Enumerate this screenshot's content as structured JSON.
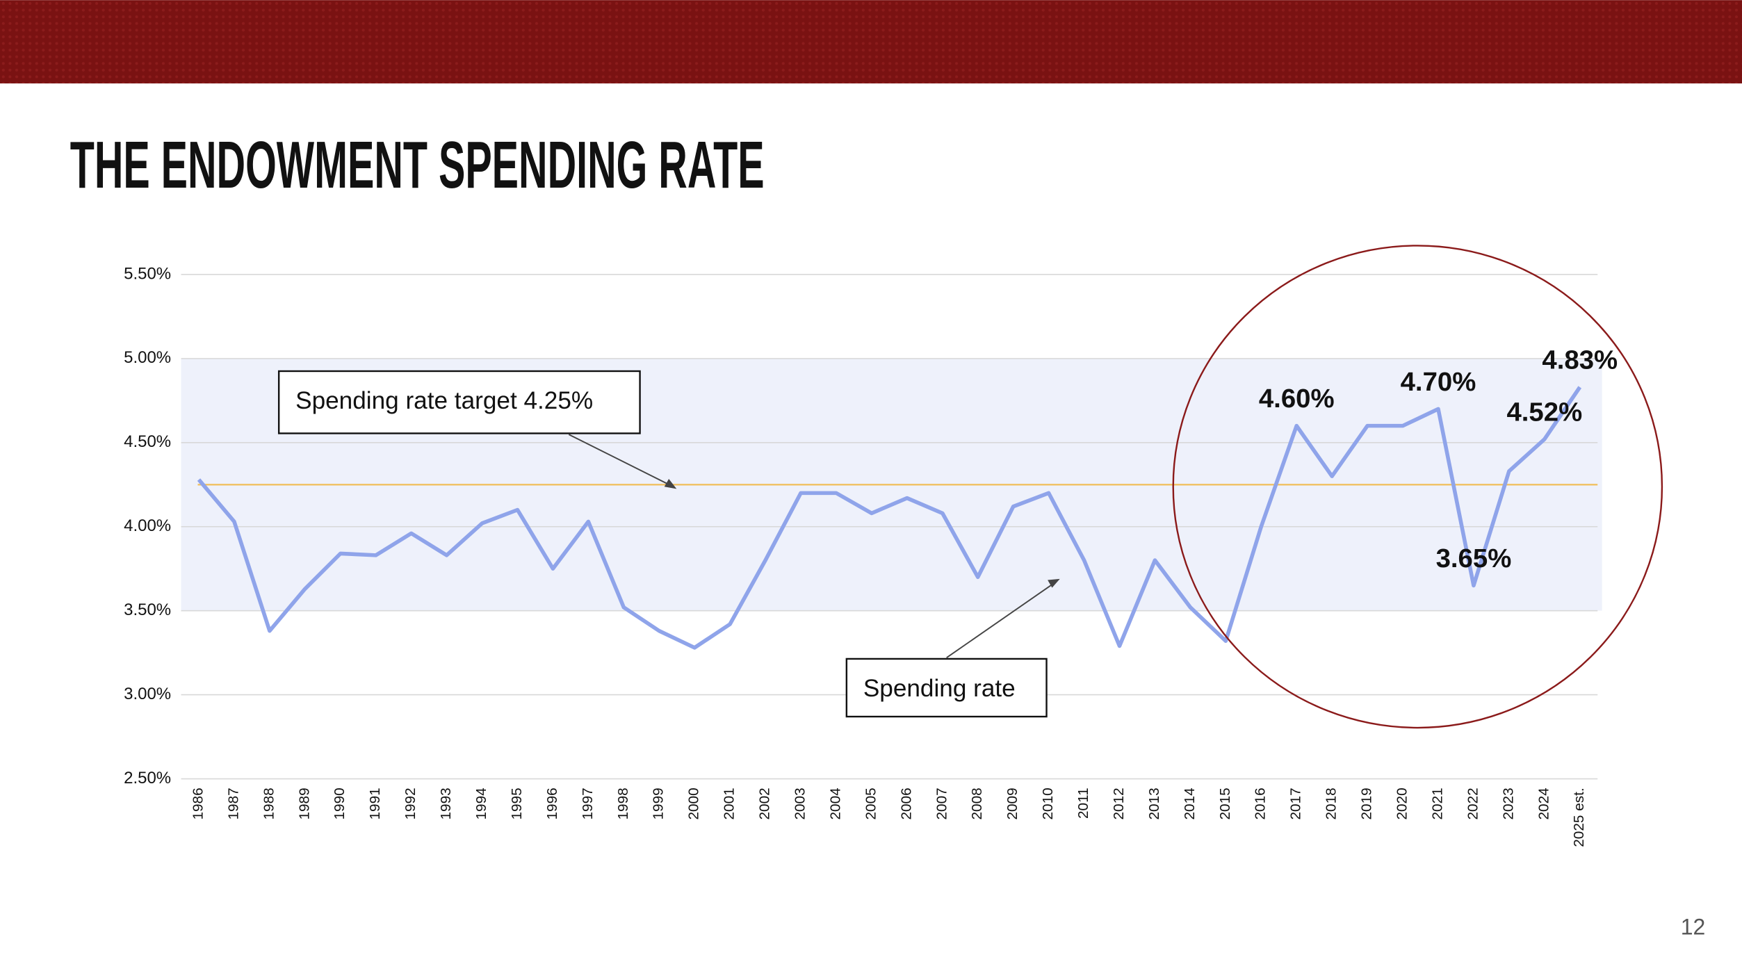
{
  "chart_data": {
    "type": "line",
    "title": "THE ENDOWMENT SPENDING RATE",
    "categories": [
      "1986",
      "1987",
      "1988",
      "1989",
      "1990",
      "1991",
      "1992",
      "1993",
      "1994",
      "1995",
      "1996",
      "1997",
      "1998",
      "1999",
      "2000",
      "2001",
      "2002",
      "2003",
      "2004",
      "2005",
      "2006",
      "2007",
      "2008",
      "2009",
      "2010",
      "2011",
      "2012",
      "2013",
      "2014",
      "2015",
      "2016",
      "2017",
      "2018",
      "2019",
      "2020",
      "2021",
      "2022",
      "2023",
      "2024",
      "2025 est."
    ],
    "series": [
      {
        "name": "Spending rate",
        "color": "#8fa4ea",
        "values": [
          4.28,
          4.03,
          3.38,
          3.63,
          3.84,
          3.83,
          3.96,
          3.83,
          4.02,
          4.1,
          3.75,
          4.03,
          3.52,
          3.38,
          3.28,
          3.42,
          3.8,
          4.2,
          4.2,
          4.08,
          4.17,
          4.08,
          3.7,
          4.12,
          4.2,
          3.8,
          3.29,
          3.8,
          3.52,
          3.32,
          4.0,
          4.6,
          4.3,
          4.6,
          4.6,
          4.7,
          3.65,
          4.33,
          4.52,
          4.83
        ],
        "value_labels": [
          null,
          null,
          null,
          null,
          null,
          null,
          null,
          null,
          null,
          null,
          null,
          null,
          null,
          null,
          null,
          null,
          null,
          null,
          null,
          null,
          null,
          null,
          null,
          null,
          null,
          null,
          null,
          null,
          null,
          null,
          null,
          "4.60%",
          null,
          null,
          null,
          "4.70%",
          "3.65%",
          null,
          "4.52%",
          "4.83%"
        ]
      }
    ],
    "target": {
      "label": "Spending rate target 4.25%",
      "value": 4.25,
      "color": "#f0c060"
    },
    "series_annotation": "Spending rate",
    "shaded_range": [
      3.5,
      5.0
    ],
    "ylim": [
      2.5,
      5.5
    ],
    "yticks": [
      {
        "value": 2.5,
        "label": "2.50%"
      },
      {
        "value": 3,
        "label": "3.00%"
      },
      {
        "value": 3.5,
        "label": "3.50%"
      },
      {
        "value": 4,
        "label": "4.00%"
      },
      {
        "value": 4.5,
        "label": "4.50%"
      },
      {
        "value": 5,
        "label": "5.00%"
      },
      {
        "value": 5.5,
        "label": "5.50%"
      }
    ],
    "grid": true
  },
  "page_number": "12"
}
